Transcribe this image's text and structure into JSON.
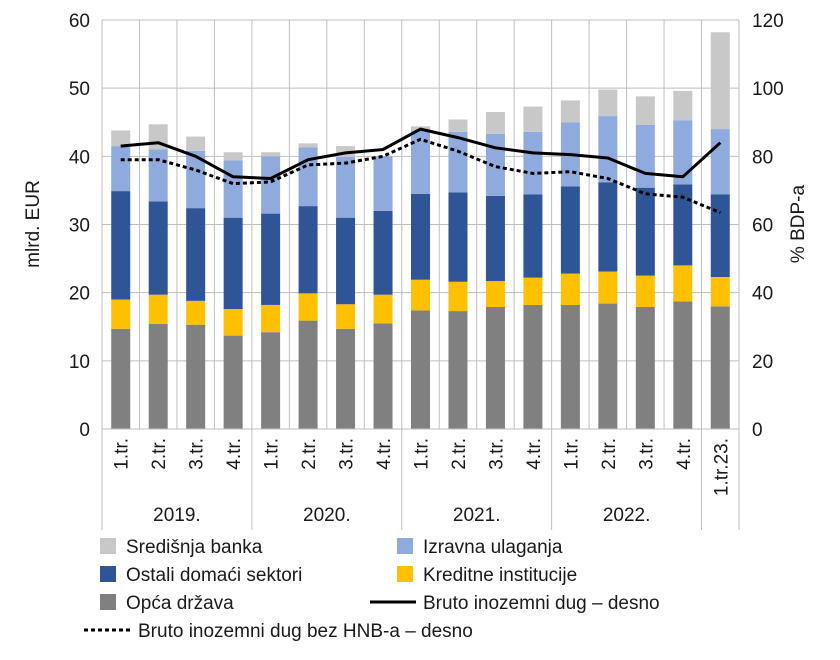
{
  "chart_data": {
    "type": "bar",
    "stacked": true,
    "grid": true,
    "categories": [
      "1.tr.",
      "2.tr.",
      "3.tr.",
      "4.tr.",
      "1.tr.",
      "2.tr.",
      "3.tr.",
      "4.tr.",
      "1.tr.",
      "2.tr.",
      "3.tr.",
      "4.tr.",
      "1.tr.",
      "2.tr.",
      "3.tr.",
      "4.tr.",
      "1.tr.23."
    ],
    "year_groups": [
      {
        "label": "2019.",
        "start": 0,
        "count": 4
      },
      {
        "label": "2020.",
        "start": 4,
        "count": 4
      },
      {
        "label": "2021.",
        "start": 8,
        "count": 4
      },
      {
        "label": "2022.",
        "start": 12,
        "count": 4
      }
    ],
    "ylabel": "mlrd. EUR",
    "y2label": "% BDP-a",
    "ylim": [
      0,
      60
    ],
    "y2lim": [
      0,
      120
    ],
    "yticks": [
      "0",
      "10",
      "20",
      "30",
      "40",
      "50",
      "60"
    ],
    "y2ticks": [
      "0",
      "20",
      "40",
      "60",
      "80",
      "100",
      "120"
    ],
    "series": [
      {
        "name": "Opća država",
        "color": "#808080",
        "axis": "left",
        "values": [
          14.7,
          15.4,
          15.3,
          13.7,
          14.2,
          15.9,
          14.7,
          15.5,
          17.4,
          17.3,
          17.9,
          18.2,
          18.2,
          18.4,
          17.9,
          18.7,
          18.0
        ]
      },
      {
        "name": "Kreditne institucije",
        "color": "#ffc000",
        "axis": "left",
        "values": [
          4.3,
          4.3,
          3.5,
          3.9,
          4.0,
          4.0,
          3.6,
          4.2,
          4.5,
          4.3,
          3.8,
          4.0,
          4.6,
          4.7,
          4.6,
          5.3,
          4.3
        ]
      },
      {
        "name": "Ostali domaći sektori",
        "color": "#2f5597",
        "axis": "left",
        "values": [
          15.9,
          13.7,
          13.6,
          13.4,
          13.4,
          12.8,
          12.7,
          12.3,
          12.6,
          13.1,
          12.5,
          12.2,
          12.8,
          13.1,
          12.9,
          11.9,
          12.1
        ]
      },
      {
        "name": "Izravna ulaganja",
        "color": "#8faadc",
        "axis": "left",
        "values": [
          6.6,
          7.6,
          8.4,
          8.4,
          8.4,
          8.6,
          8.9,
          8.0,
          9.3,
          8.9,
          9.1,
          9.2,
          9.4,
          9.7,
          9.2,
          9.4,
          9.6
        ]
      },
      {
        "name": "Središnja banka",
        "color": "#c8c8c8",
        "axis": "left",
        "values": [
          2.3,
          3.7,
          2.1,
          1.2,
          0.6,
          0.6,
          1.6,
          0.0,
          0.6,
          1.8,
          3.2,
          3.7,
          3.2,
          3.9,
          4.2,
          4.3,
          14.2
        ]
      },
      {
        "name": "Bruto inozemni dug – desno",
        "color": "#000000",
        "axis": "right",
        "style": "solid",
        "values": [
          83,
          84,
          80,
          74,
          73.5,
          79,
          81,
          82,
          88,
          85.5,
          82.5,
          81,
          80.5,
          79.5,
          75,
          74,
          84
        ]
      },
      {
        "name": "Bruto inozemni dug bez HNB-a – desno",
        "color": "#000000",
        "axis": "right",
        "style": "dotted",
        "values": [
          79,
          79,
          76,
          72,
          72.5,
          77.5,
          78,
          80,
          85,
          81.5,
          77,
          75,
          75.5,
          73.5,
          69,
          68,
          63.5
        ]
      }
    ],
    "legend": {
      "placement": "bottom",
      "items": [
        {
          "label": "Središnja banka",
          "color": "#c8c8c8",
          "kind": "box"
        },
        {
          "label": "Izravna ulaganja",
          "color": "#8faadc",
          "kind": "box"
        },
        {
          "label": "Ostali domaći sektori",
          "color": "#2f5597",
          "kind": "box"
        },
        {
          "label": "Kreditne institucije",
          "color": "#ffc000",
          "kind": "box"
        },
        {
          "label": "Opća država",
          "color": "#808080",
          "kind": "box"
        },
        {
          "label": "Bruto inozemni dug – desno",
          "color": "#000000",
          "kind": "line"
        },
        {
          "label": "Bruto inozemni dug bez HNB-a – desno",
          "color": "#000000",
          "kind": "dotted"
        }
      ]
    }
  }
}
